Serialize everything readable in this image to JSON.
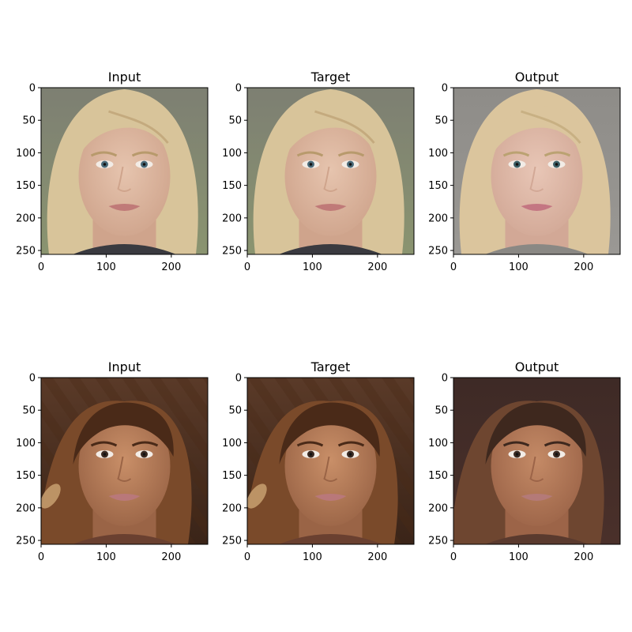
{
  "figure": {
    "rows": [
      {
        "panels": [
          {
            "title": "Input",
            "kind": "input",
            "image": "portrait-blonde-woman-photo"
          },
          {
            "title": "Target",
            "kind": "target",
            "image": "portrait-blonde-woman-photo"
          },
          {
            "title": "Output",
            "kind": "output",
            "image": "portrait-blonde-woman-generated"
          }
        ]
      },
      {
        "panels": [
          {
            "title": "Input",
            "kind": "input",
            "image": "portrait-brunette-woman-photo"
          },
          {
            "title": "Target",
            "kind": "target",
            "image": "portrait-brunette-woman-photo"
          },
          {
            "title": "Output",
            "kind": "output",
            "image": "portrait-brunette-woman-generated"
          }
        ]
      }
    ],
    "x_ticks": [
      "0",
      "100",
      "200"
    ],
    "y_ticks": [
      "0",
      "50",
      "100",
      "150",
      "200",
      "250"
    ],
    "pixel_range": [
      0,
      256
    ]
  },
  "palettes": {
    "row0": {
      "bg_top": "#7d7f72",
      "bg_bottom": "#8a9470",
      "hair": "#d8c49a",
      "hair_dark": "#b89a6c",
      "skin": "#e6c4ae",
      "skin_shade": "#cfa48c",
      "eye": "#4a6a78",
      "lips": "#c07a78",
      "shirt": "#3a3a40"
    },
    "row0_output": {
      "bg_top": "#8e8c88",
      "bg_bottom": "#9a9894",
      "hair": "#dbc59d",
      "hair_dark": "#bba272",
      "skin": "#e8c6b6",
      "skin_shade": "#d2a896",
      "eye": "#3c5f66",
      "lips": "#c47682",
      "shirt": "#8a8884"
    },
    "row1": {
      "bg_top": "#5a3a28",
      "bg_bottom": "#3a2418",
      "hair": "#7a4a2a",
      "hair_dark": "#4a2a18",
      "skin": "#c98f68",
      "skin_shade": "#9a6446",
      "eye": "#3a2a22",
      "lips": "#b9787a",
      "shirt": "#6a4030"
    },
    "row1_output": {
      "bg_top": "#3e2a26",
      "bg_bottom": "#4a302a",
      "hair": "#6e4630",
      "hair_dark": "#3e281e",
      "skin": "#c48a66",
      "skin_shade": "#9c6448",
      "eye": "#3a2a22",
      "lips": "#b47a78",
      "shirt": "#5a3a2e"
    }
  }
}
